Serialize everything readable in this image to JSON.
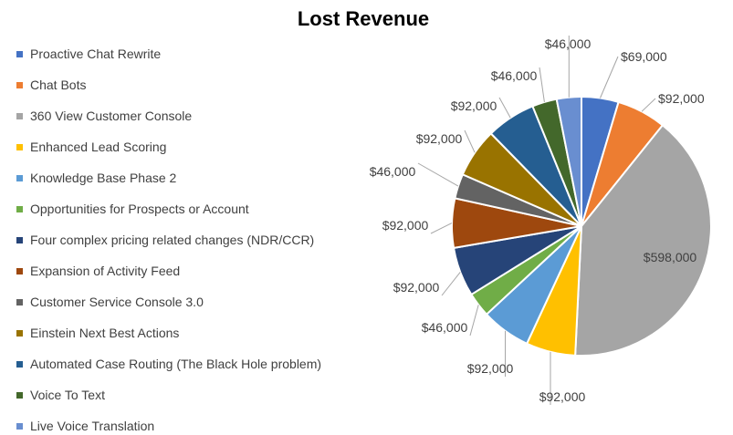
{
  "chart_data": {
    "type": "pie",
    "title": "Lost Revenue",
    "legend_position": "left",
    "categories": [
      "Proactive Chat Rewrite",
      "Chat Bots",
      "360 View Customer Console",
      "Enhanced Lead Scoring",
      "Knowledge Base Phase 2",
      "Opportunities for Prospects or Account",
      "Four complex pricing related changes (NDR/CCR)",
      "Expansion of Activity Feed",
      "Customer Service Console 3.0",
      "Einstein Next Best Actions",
      "Automated Case Routing (The Black Hole problem)",
      "Voice To Text",
      "Live Voice Translation"
    ],
    "values": [
      69000,
      92000,
      598000,
      92000,
      92000,
      46000,
      92000,
      92000,
      46000,
      92000,
      92000,
      46000,
      46000
    ],
    "data_labels": [
      "$69,000",
      "$92,000",
      "$598,000",
      "$92,000",
      "$92,000",
      "$46,000",
      "$92,000",
      "$92,000",
      "$46,000",
      "$92,000",
      "$92,000",
      "$46,000",
      "$46,000"
    ],
    "colors": [
      "#4472C4",
      "#ED7D31",
      "#A5A5A5",
      "#FFC000",
      "#5B9BD5",
      "#70AD47",
      "#264478",
      "#9E480E",
      "#636363",
      "#997300",
      "#255E91",
      "#43682B",
      "#698ED0"
    ]
  }
}
